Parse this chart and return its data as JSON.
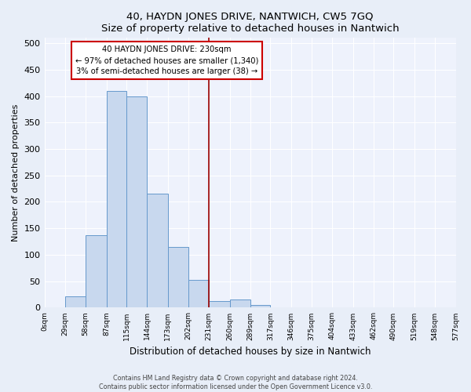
{
  "title": "40, HAYDN JONES DRIVE, NANTWICH, CW5 7GQ",
  "subtitle": "Size of property relative to detached houses in Nantwich",
  "xlabel": "Distribution of detached houses by size in Nantwich",
  "ylabel": "Number of detached properties",
  "bin_edges": [
    0,
    29,
    58,
    87,
    115,
    144,
    173,
    202,
    231,
    260,
    289,
    317,
    346,
    375,
    404,
    433,
    462,
    490,
    519,
    548,
    577
  ],
  "counts": [
    0,
    22,
    137,
    410,
    400,
    215,
    115,
    53,
    12,
    15,
    5,
    0,
    0,
    0,
    0,
    0,
    0,
    0,
    0,
    0
  ],
  "bar_color": "#c8d8ee",
  "bar_edge_color": "#6699cc",
  "property_line_x": 231,
  "property_line_color": "#990000",
  "annotation_title": "40 HAYDN JONES DRIVE: 230sqm",
  "annotation_line1": "← 97% of detached houses are smaller (1,340)",
  "annotation_line2": "3% of semi-detached houses are larger (38) →",
  "annotation_box_color": "#ffffff",
  "annotation_box_edge_color": "#cc0000",
  "ylim": [
    0,
    510
  ],
  "yticks": [
    0,
    50,
    100,
    150,
    200,
    250,
    300,
    350,
    400,
    450,
    500
  ],
  "tick_labels": [
    "0sqm",
    "29sqm",
    "58sqm",
    "87sqm",
    "115sqm",
    "144sqm",
    "173sqm",
    "202sqm",
    "231sqm",
    "260sqm",
    "289sqm",
    "317sqm",
    "346sqm",
    "375sqm",
    "404sqm",
    "433sqm",
    "462sqm",
    "490sqm",
    "519sqm",
    "548sqm",
    "577sqm"
  ],
  "footer_line1": "Contains HM Land Registry data © Crown copyright and database right 2024.",
  "footer_line2": "Contains public sector information licensed under the Open Government Licence v3.0.",
  "background_color": "#e8eef8",
  "plot_bg_color": "#eef2fc",
  "grid_color": "#ffffff"
}
